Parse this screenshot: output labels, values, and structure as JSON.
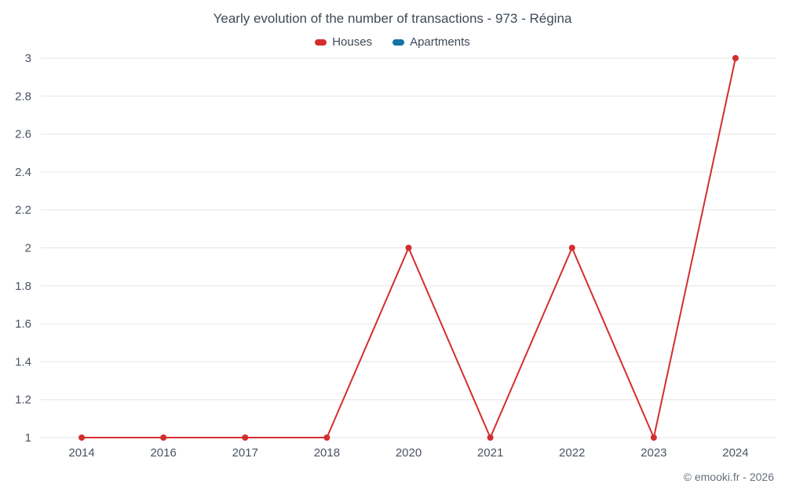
{
  "chart": {
    "title": "Yearly evolution of the number of transactions - 973 - Régina",
    "footer": "© emooki.fr - 2026"
  },
  "chart_data": {
    "type": "line",
    "title": "Yearly evolution of the number of transactions - 973 - Régina",
    "categories": [
      "2014",
      "2016",
      "2017",
      "2018",
      "2020",
      "2021",
      "2022",
      "2023",
      "2024"
    ],
    "series": [
      {
        "name": "Houses",
        "color": "#d32e2e",
        "values": [
          1,
          1,
          1,
          1,
          2,
          1,
          2,
          1,
          3
        ]
      },
      {
        "name": "Apartments",
        "color": "#1374a6",
        "values": []
      }
    ],
    "xlabel": "",
    "ylabel": "",
    "ylim": [
      1,
      3
    ],
    "yticks": [
      1,
      1.2,
      1.4,
      1.6,
      1.8,
      2,
      2.2,
      2.4,
      2.6,
      2.8,
      3
    ],
    "grid": true,
    "legend_position": "top",
    "grid_color": "#e6e6e6",
    "tick_label_color": "#4a5362"
  }
}
